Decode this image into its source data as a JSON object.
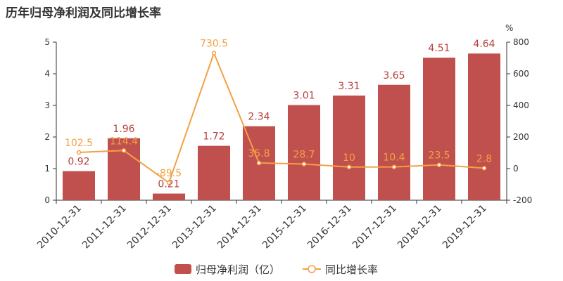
{
  "chart_data": {
    "type": "bar",
    "title": "历年归母净利润及同比增长率",
    "categories": [
      "2010-12-31",
      "2011-12-31",
      "2012-12-31",
      "2013-12-31",
      "2014-12-31",
      "2015-12-31",
      "2016-12-31",
      "2017-12-31",
      "2018-12-31",
      "2019-12-31"
    ],
    "series": [
      {
        "name": "归母净利润（亿）",
        "type": "bar",
        "axis": "left",
        "color": "#c0504d",
        "values": [
          0.92,
          1.96,
          0.21,
          1.72,
          2.34,
          3.01,
          3.31,
          3.65,
          4.51,
          4.64
        ],
        "labels": [
          "0.92",
          "1.96",
          "0.21",
          "1.72",
          "2.34",
          "3.01",
          "3.31",
          "3.65",
          "4.51",
          "4.64"
        ]
      },
      {
        "name": "同比增长率",
        "type": "line",
        "axis": "right",
        "color": "#f2a145",
        "values": [
          102.5,
          114.4,
          -89.5,
          730.5,
          35.8,
          28.7,
          10,
          10.4,
          23.5,
          2.8
        ],
        "labels": [
          "102.5",
          "114.4",
          "-89.5",
          "730.5",
          "35.8",
          "28.7",
          "10",
          "10.4",
          "23.5",
          "2.8"
        ]
      }
    ],
    "y_left": {
      "ylim": [
        0,
        5
      ],
      "ticks": [
        "0",
        "1",
        "2",
        "3",
        "4",
        "5"
      ]
    },
    "y_right": {
      "ylim": [
        -200,
        800
      ],
      "ticks": [
        "-200",
        "0",
        "200",
        "400",
        "600",
        "800"
      ],
      "unit_label": "%"
    },
    "legend_position": "bottom-center",
    "grid": false
  }
}
